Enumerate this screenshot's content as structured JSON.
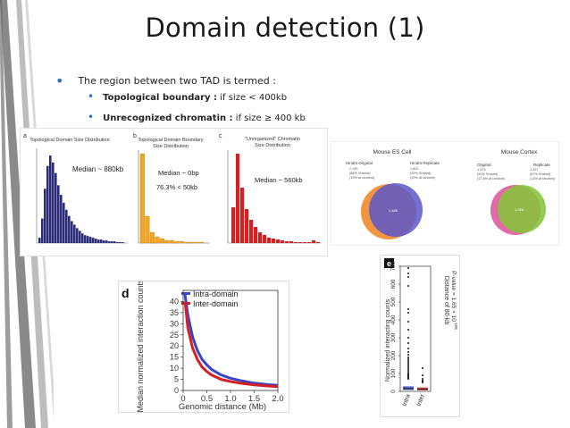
{
  "slide": {
    "title": "Domain detection (1)",
    "bullet": "The region between two TAD is termed :",
    "sub1_term": "Topological boundary :",
    "sub1_rest": " if size < 400kb",
    "sub2_term": "Unrecognized chromatin :",
    "sub2_rest": " if size ≥ 400 kb"
  },
  "colors": {
    "accent": "#2e6fc4",
    "navy": "#2b2b7a",
    "orange": "#f2a623",
    "red": "#d42020",
    "blue": "#3a45c8",
    "green": "#8cc53f",
    "pink": "#e0589e"
  },
  "figA": {
    "a": {
      "letter": "a",
      "title": "Topological Domain Size Distribution",
      "annot": "Median ~ 880kb"
    },
    "b": {
      "letter": "b",
      "title1": "Topological Domain Boundary",
      "title2": "Size Distribution",
      "annot1": "Median ~ 0bp",
      "annot2": "76.3% < 50kb"
    },
    "c": {
      "letter": "c",
      "title1": "\"Unorganized\" Chromatin",
      "title2": "Size Distribution",
      "annot": "Median ~ 560kb"
    }
  },
  "figB": {
    "es_title": "Mouse ES Cell",
    "es_left_head": "HindIII Original",
    "es_left_lines": [
      "2,190",
      "(88% Shared)",
      "(19% at random)"
    ],
    "es_right_head": "HindIII Replicate",
    "es_right_lines": [
      "1,832",
      "(92% Shared)",
      "(19% at random)"
    ],
    "es_center": "1,485",
    "cx_title": "Mouse Cortex",
    "cx_left_head": "Original",
    "cx_left_lines": [
      "1,229",
      "(90% Shared)",
      "(17.8% at random)"
    ],
    "cx_right_head": "Replicate",
    "cx_right_lines": [
      "1,297",
      "(87% Shared)",
      "(13% at random)"
    ],
    "cx_center": "1,056"
  },
  "chart_data": [
    {
      "type": "line",
      "panel_letter": "d",
      "xlabel": "Genomic distance (Mb)",
      "ylabel": "Median normalized interaction counts",
      "xlim": [
        0,
        2.0
      ],
      "ylim": [
        0,
        45
      ],
      "xticks": [
        "0",
        "0.5",
        "1.0",
        "1.5",
        "2.0"
      ],
      "yticks": [
        "0",
        "5",
        "10",
        "15",
        "20",
        "25",
        "30",
        "35",
        "40"
      ],
      "x": [
        0.04,
        0.1,
        0.2,
        0.3,
        0.4,
        0.5,
        0.6,
        0.8,
        1.0,
        1.2,
        1.5,
        1.8,
        2.0
      ],
      "series": [
        {
          "name": "Intra-domain",
          "values": [
            43,
            34,
            24,
            18,
            14,
            11.5,
            9.5,
            7,
            5.5,
            4.5,
            3.3,
            2.6,
            2.3
          ]
        },
        {
          "name": "Inter-domain",
          "values": [
            40,
            28,
            19,
            14,
            10.5,
            8.5,
            7,
            5,
            4,
            3.3,
            2.5,
            2,
            1.7
          ]
        }
      ],
      "legend": "top-right"
    },
    {
      "type": "box",
      "panel_letter": "e",
      "ylabel": "Normalized interacting counts",
      "right_label": "Distance of 80-kb",
      "p_text": "P-value = 1.65 × 10",
      "p_exp": "-106",
      "ylim": [
        0,
        700
      ],
      "yticks": [
        "0",
        "100",
        "200",
        "300",
        "400",
        "500",
        "600",
        "700"
      ],
      "categories": [
        "Intra",
        "Inter"
      ],
      "median": [
        15,
        12
      ],
      "q1": [
        8,
        6
      ],
      "q3": [
        28,
        22
      ]
    }
  ]
}
